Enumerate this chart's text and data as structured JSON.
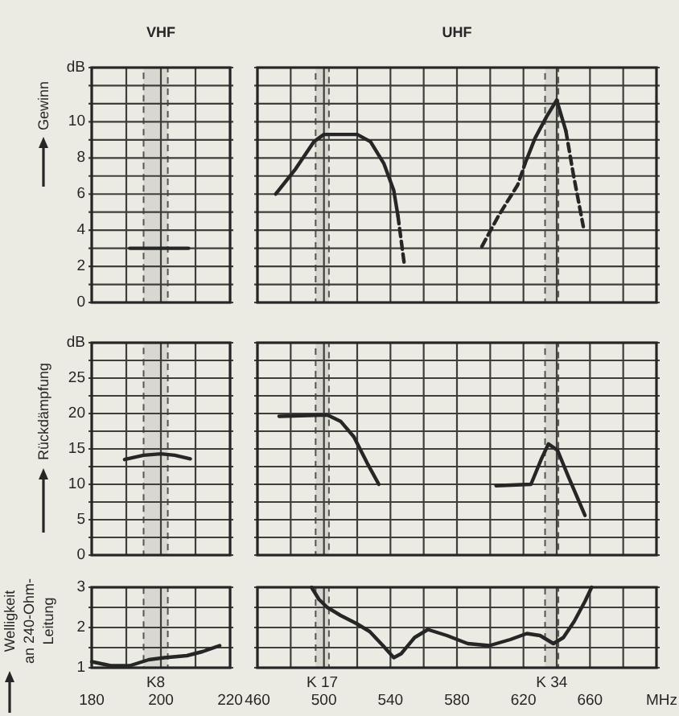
{
  "chart_data": [
    {
      "type": "line",
      "title": "VHF",
      "ylabel": "Gewinn",
      "xlim": [
        180,
        220
      ],
      "xticks": [
        180,
        {
          "value": 190,
          "label": null
        },
        200,
        {
          "value": 210,
          "label": null
        },
        220
      ],
      "ylim": [
        0,
        13
      ],
      "yticks": [
        0,
        {
          "value": 1,
          "label": null
        },
        2,
        {
          "value": 3,
          "label": null
        },
        4,
        {
          "value": 5,
          "label": null
        },
        6,
        {
          "value": 7,
          "label": null
        },
        8,
        {
          "value": 9,
          "label": null
        },
        10,
        {
          "value": 11,
          "label": null
        },
        {
          "value": 12,
          "label": null
        },
        {
          "value": 13,
          "label": "dB"
        }
      ],
      "grid": true,
      "tick_labels": "y",
      "bands": [
        {
          "axis": "x",
          "from": 195,
          "to": 202
        }
      ],
      "series": [
        {
          "x": [
            191,
            208
          ],
          "values": [
            3,
            3
          ],
          "color": "#262626",
          "line_style": "solid"
        }
      ]
    },
    {
      "type": "line",
      "title": "UHF",
      "xlim": [
        460,
        700
      ],
      "xticks": [
        460,
        {
          "value": 480,
          "label": null
        },
        500,
        {
          "value": 520,
          "label": null
        },
        540,
        {
          "value": 560,
          "label": null
        },
        580,
        {
          "value": 600,
          "label": null
        },
        620,
        {
          "value": 640,
          "label": null
        },
        660,
        {
          "value": 680,
          "label": null
        }
      ],
      "ylim": [
        0,
        13
      ],
      "yticks": [
        0,
        {
          "value": 1,
          "label": null
        },
        2,
        {
          "value": 3,
          "label": null
        },
        4,
        {
          "value": 5,
          "label": null
        },
        6,
        {
          "value": 7,
          "label": null
        },
        8,
        {
          "value": 9,
          "label": null
        },
        10,
        {
          "value": 11,
          "label": null
        },
        {
          "value": 12,
          "label": null
        },
        {
          "value": 13,
          "label": null
        }
      ],
      "grid": true,
      "tick_labels": false,
      "bands": [
        {
          "axis": "x",
          "from": 495,
          "to": 503
        },
        {
          "axis": "x",
          "from": 633,
          "to": 641
        }
      ],
      "series": [
        {
          "x": [
            471,
            483,
            494,
            500,
            520,
            528,
            536,
            542,
            544.5
          ],
          "values": [
            6.0,
            7.4,
            8.9,
            9.3,
            9.3,
            8.9,
            7.7,
            6.2,
            4.8
          ],
          "color": "#262626",
          "line_style": "solid"
        },
        {
          "x": [
            544.5,
            546.5,
            548.5
          ],
          "values": [
            4.8,
            3.4,
            2.0
          ],
          "color": "#262626",
          "line_style": "dashed"
        },
        {
          "x": [
            595,
            605,
            616.5,
            621
          ],
          "values": [
            3.1,
            4.8,
            6.5,
            7.7
          ],
          "color": "#262626",
          "line_style": "dashed"
        },
        {
          "x": [
            621,
            627,
            634,
            640,
            645.5
          ],
          "values": [
            7.7,
            9.1,
            10.3,
            11.2,
            9.5
          ],
          "color": "#262626",
          "line_style": "solid"
        },
        {
          "x": [
            645.5,
            650,
            656
          ],
          "values": [
            9.5,
            7.1,
            4.2
          ],
          "color": "#262626",
          "line_style": "dashed"
        }
      ]
    },
    {
      "type": "line",
      "ylabel": "Rückdämpfung",
      "xlim": [
        180,
        220
      ],
      "xticks": [
        180,
        {
          "value": 190,
          "label": null
        },
        200,
        {
          "value": 210,
          "label": null
        },
        220
      ],
      "ylim": [
        0,
        30
      ],
      "yticks": [
        0,
        {
          "value": 2.5,
          "label": null
        },
        5,
        {
          "value": 7.5,
          "label": null
        },
        10,
        {
          "value": 12.5,
          "label": null
        },
        15,
        {
          "value": 17.5,
          "label": null
        },
        20,
        {
          "value": 22.5,
          "label": null
        },
        25,
        {
          "value": 27.5,
          "label": null
        },
        {
          "value": 30,
          "label": "dB"
        }
      ],
      "grid": true,
      "tick_labels": "y",
      "bands": [
        {
          "axis": "x",
          "from": 195,
          "to": 202
        }
      ],
      "series": [
        {
          "x": [
            189.5,
            195,
            200,
            204,
            208.5
          ],
          "values": [
            13.5,
            14.1,
            14.3,
            14.1,
            13.6
          ],
          "color": "#262626",
          "line_style": "solid"
        }
      ]
    },
    {
      "type": "line",
      "xlim": [
        460,
        700
      ],
      "xticks": [
        460,
        {
          "value": 480,
          "label": null
        },
        500,
        {
          "value": 520,
          "label": null
        },
        540,
        {
          "value": 560,
          "label": null
        },
        580,
        {
          "value": 600,
          "label": null
        },
        620,
        {
          "value": 640,
          "label": null
        },
        660,
        {
          "value": 680,
          "label": null
        }
      ],
      "ylim": [
        0,
        30
      ],
      "yticks": [
        0,
        {
          "value": 2.5,
          "label": null
        },
        5,
        {
          "value": 7.5,
          "label": null
        },
        10,
        {
          "value": 12.5,
          "label": null
        },
        15,
        {
          "value": 17.5,
          "label": null
        },
        20,
        {
          "value": 22.5,
          "label": null
        },
        25,
        {
          "value": 27.5,
          "label": null
        },
        {
          "value": 30,
          "label": null
        }
      ],
      "grid": true,
      "tick_labels": false,
      "bands": [
        {
          "axis": "x",
          "from": 495,
          "to": 503
        },
        {
          "axis": "x",
          "from": 633,
          "to": 641
        }
      ],
      "series": [
        {
          "x": [
            473,
            502,
            510,
            518,
            526,
            533
          ],
          "values": [
            19.6,
            19.8,
            18.9,
            16.7,
            13.0,
            10.0
          ],
          "color": "#262626",
          "line_style": "solid"
        },
        {
          "x": [
            603.5,
            624.5,
            631,
            635,
            640.5,
            647,
            657
          ],
          "values": [
            9.8,
            10.0,
            13.7,
            15.7,
            14.8,
            11.1,
            5.6
          ],
          "color": "#262626",
          "line_style": "solid"
        }
      ]
    },
    {
      "type": "line",
      "ylabel": "Welligkeit an 240-Ohm-Leitung",
      "xlim": [
        180,
        220
      ],
      "xticks": [
        180,
        {
          "value": 190,
          "label": null
        },
        200,
        {
          "value": 210,
          "label": null
        },
        220
      ],
      "ylim": [
        1,
        3
      ],
      "yticks": [
        1,
        {
          "value": 1.5,
          "label": null
        },
        2,
        {
          "value": 2.5,
          "label": null
        },
        3
      ],
      "grid": true,
      "bands": [
        {
          "axis": "x",
          "from": 195,
          "to": 202,
          "label": "K8"
        }
      ],
      "series": [
        {
          "x": [
            180,
            185.5,
            191,
            196.5,
            201,
            207.5,
            212,
            217
          ],
          "values": [
            1.15,
            1.05,
            1.05,
            1.2,
            1.25,
            1.3,
            1.4,
            1.55
          ],
          "color": "#262626",
          "line_style": "solid"
        }
      ]
    },
    {
      "type": "line",
      "xlabel": "MHz",
      "xlim": [
        460,
        700
      ],
      "xticks": [
        460,
        {
          "value": 480,
          "label": null
        },
        500,
        {
          "value": 520,
          "label": null
        },
        540,
        {
          "value": 560,
          "label": null
        },
        580,
        {
          "value": 600,
          "label": null
        },
        620,
        {
          "value": 640,
          "label": null
        },
        660,
        {
          "value": 680,
          "label": null
        }
      ],
      "ylim": [
        1,
        3
      ],
      "yticks": [
        1,
        {
          "value": 1.5,
          "label": null
        },
        2,
        {
          "value": 2.5,
          "label": null
        },
        3
      ],
      "grid": true,
      "tick_labels": "x",
      "bands": [
        {
          "axis": "x",
          "from": 495,
          "to": 503,
          "label": "K 17"
        },
        {
          "axis": "x",
          "from": 633,
          "to": 641,
          "label": "K 34"
        }
      ],
      "series": [
        {
          "x": [
            492.5,
            497,
            502,
            510,
            519.5,
            527.5,
            535.5,
            542,
            546.5,
            554.5,
            562.5,
            574,
            586.5,
            599.5,
            612,
            622,
            630,
            638,
            644,
            650.5,
            657,
            661
          ],
          "values": [
            3.0,
            2.7,
            2.5,
            2.3,
            2.1,
            1.9,
            1.55,
            1.25,
            1.35,
            1.75,
            1.95,
            1.8,
            1.6,
            1.55,
            1.7,
            1.85,
            1.8,
            1.6,
            1.75,
            2.15,
            2.65,
            3.0
          ],
          "color": "#262626",
          "line_style": "solid"
        }
      ]
    }
  ]
}
